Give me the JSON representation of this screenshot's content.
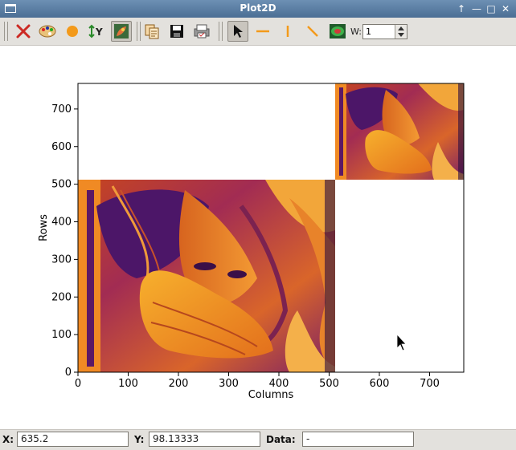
{
  "window": {
    "title": "Plot2D"
  },
  "toolbar": {
    "icons": [
      "reset-zoom-icon",
      "colormap-icon",
      "curve-style-icon",
      "y-autoscale-icon",
      "colorbar-icon",
      "copy-icon",
      "save-icon",
      "print-icon",
      "select-pointer-icon",
      "horizontal-line-icon",
      "vertical-line-icon",
      "diagonal-line-icon",
      "mask-icon"
    ],
    "width_label": "W:",
    "width_value": "1"
  },
  "plot": {
    "xlabel": "Columns",
    "ylabel": "Rows",
    "xticks": [
      "0",
      "100",
      "200",
      "300",
      "400",
      "500",
      "600",
      "700"
    ],
    "yticks": [
      "0",
      "100",
      "200",
      "300",
      "400",
      "500",
      "600",
      "700"
    ],
    "xlim": [
      0,
      768
    ],
    "ylim": [
      0,
      768
    ]
  },
  "chart_data": {
    "type": "heatmap",
    "xlabel": "Columns",
    "ylabel": "Rows",
    "xlim": [
      0,
      768
    ],
    "ylim": [
      0,
      768
    ],
    "images": [
      {
        "x_range": [
          0,
          512
        ],
        "y_range": [
          0,
          512
        ]
      },
      {
        "x_range": [
          512,
          768
        ],
        "y_range": [
          512,
          768
        ]
      }
    ],
    "colormap": "inferno-like (purple to orange)"
  },
  "status": {
    "x_label": "X:",
    "x_value": "635.2",
    "y_label": "Y:",
    "y_value": "98.13333",
    "data_label": "Data:",
    "data_value": "-"
  },
  "colors": {
    "titlebar": "#5a7da3",
    "toolbar": "#e3e1dd",
    "image_dark": "#3b1470",
    "image_light": "#f5a11d"
  }
}
